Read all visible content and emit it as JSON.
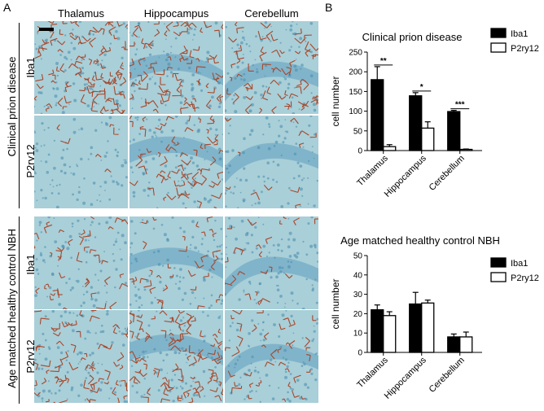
{
  "panel_a": {
    "letter": "A",
    "columns": [
      "Thalamus",
      "Hippocampus",
      "Cerebellum"
    ],
    "groups": [
      {
        "label": "Clinical prion disease",
        "rows": [
          "Iba1",
          "P2ry12"
        ]
      },
      {
        "label": "Age matched healthy control NBH",
        "rows": [
          "Iba1",
          "P2ry12"
        ]
      }
    ],
    "colors": {
      "background": "#a9cfd8",
      "stain_brown": "#a8472a",
      "nuclei_blue": "#4d8fb0"
    }
  },
  "panel_b": {
    "letter": "B"
  },
  "chart_data": [
    {
      "type": "bar",
      "title": "Clinical prion disease",
      "categories": [
        "Thalamus",
        "Hippocampus",
        "Cerebellum"
      ],
      "series": [
        {
          "name": "Iba1",
          "values": [
            180,
            139,
            99
          ],
          "errors": [
            33,
            8,
            3
          ],
          "color": "#000000"
        },
        {
          "name": "P2ry12",
          "values": [
            10,
            57,
            3
          ],
          "errors": [
            5,
            16,
            1
          ],
          "color": "#ffffff"
        }
      ],
      "significance": [
        "**",
        "*",
        "***"
      ],
      "ylabel": "cell number",
      "xlabel": "",
      "ylim": [
        0,
        250
      ],
      "yticks": [
        0,
        50,
        100,
        150,
        200,
        250
      ],
      "grid": false,
      "legend": "top-right"
    },
    {
      "type": "bar",
      "title": "Age matched healthy control NBH",
      "categories": [
        "Thalamus",
        "Hippocampus",
        "Cerebellum"
      ],
      "series": [
        {
          "name": "Iba1",
          "values": [
            22,
            25,
            8
          ],
          "errors": [
            2.5,
            6,
            1.5
          ],
          "color": "#000000"
        },
        {
          "name": "P2ry12",
          "values": [
            19,
            25.5,
            8
          ],
          "errors": [
            2,
            1.5,
            2.5
          ],
          "color": "#ffffff"
        }
      ],
      "significance": [],
      "ylabel": "cell number",
      "xlabel": "",
      "ylim": [
        0,
        50
      ],
      "yticks": [
        0,
        10,
        20,
        30,
        40,
        50
      ],
      "grid": false,
      "legend": "top-right"
    }
  ]
}
